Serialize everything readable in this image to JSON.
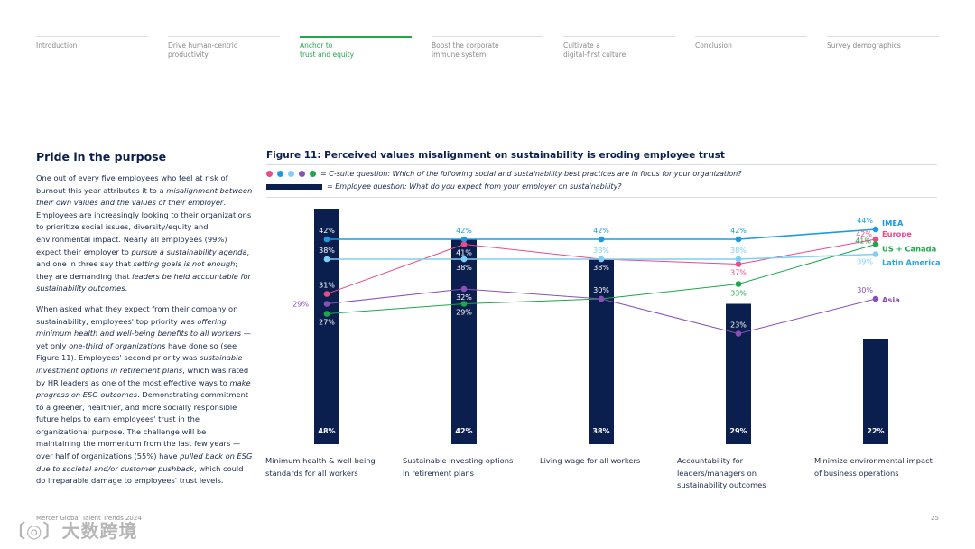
{
  "nav": [
    {
      "label": "Introduction",
      "active": false
    },
    {
      "label": "Drive human-centric\nproductivity",
      "active": false
    },
    {
      "label": "Anchor to\ntrust and equity",
      "active": true
    },
    {
      "label": "Boost the corporate\nimmune system",
      "active": false
    },
    {
      "label": "Cultivate a\ndigital-first culture",
      "active": false
    },
    {
      "label": "Conclusion",
      "active": false
    },
    {
      "label": "Survey demographics",
      "active": false
    }
  ],
  "section_title": "Pride in the purpose",
  "paragraphs": [
    [
      {
        "t": "One out of every five employees who feel at risk of burnout this year attributes it to a "
      },
      {
        "t": "misalignment between their own values and the values of their employer",
        "i": true
      },
      {
        "t": ". Employees are increasingly looking to their organizations to prioritize social issues, diversity/equity and environmental impact. Nearly all employees (99%) expect their employer to "
      },
      {
        "t": "pursue a sustainability agenda",
        "i": true
      },
      {
        "t": ", and one in three say that "
      },
      {
        "t": "setting goals is not enough",
        "i": true
      },
      {
        "t": "; they are demanding that "
      },
      {
        "t": "leaders be held accountable for sustainability outcomes",
        "i": true
      },
      {
        "t": "."
      }
    ],
    [
      {
        "t": "When asked what they expect from their company on sustainability, employees' top priority was "
      },
      {
        "t": "offering minimum health and well-being benefits to all workers",
        "i": true
      },
      {
        "t": " — yet only "
      },
      {
        "t": "one-third of organizations",
        "i": true
      },
      {
        "t": " have done so (see Figure 11). Employees' second priority was "
      },
      {
        "t": "sustainable investment options in retirement plans",
        "i": true
      },
      {
        "t": ", which was rated by HR leaders as one of the most effective ways to "
      },
      {
        "t": "make progress on ESG outcomes",
        "i": true
      },
      {
        "t": ". Demonstrating commitment to a greener, healthier, and more socially responsible future helps to earn employees' trust in the organizational purpose. The challenge will be maintaining the momentum from the last few years — over half of organizations (55%) have "
      },
      {
        "t": "pulled back on ESG due to societal and/or customer pushback",
        "i": true
      },
      {
        "t": ", which could do irreparable damage to employees' trust levels."
      }
    ]
  ],
  "chart_data": {
    "type": "bar",
    "title": "Figure 11: Perceived values misalignment on sustainability is eroding employee trust",
    "legend": {
      "csuite": "= C-suite question: Which of the following social and sustainability best practices are in focus for your organization?",
      "employee": "= Employee question: What do you expect from your employer on sustainability?"
    },
    "categories": [
      "Minimum health & well-being standards for all workers",
      "Sustainable investing options in retirement plans",
      "Living wage for all workers",
      "Accountability for leaders/managers on sustainability outcomes",
      "Minimize environmental impact of business operations"
    ],
    "bars": {
      "name": "Employee",
      "values": [
        48,
        42,
        38,
        29,
        22
      ],
      "color": "#0b1f4e"
    },
    "series": [
      {
        "name": "IMEA",
        "values": [
          42,
          42,
          42,
          42,
          44
        ],
        "color": "#1a9be0"
      },
      {
        "name": "Europe",
        "values": [
          31,
          41,
          38,
          37,
          42
        ],
        "color": "#e84a8a"
      },
      {
        "name": "US + Canada",
        "values": [
          27,
          29,
          30,
          33,
          41
        ],
        "color": "#1aa84a"
      },
      {
        "name": "Latin America",
        "values": [
          38,
          38,
          38,
          38,
          39
        ],
        "color": "#7fcff5"
      },
      {
        "name": "Asia",
        "values": [
          29,
          32,
          30,
          23,
          30
        ],
        "color": "#8a4fb5"
      }
    ],
    "ylim": [
      0,
      50
    ]
  },
  "footer": "Mercer Global Talent Trends 2024",
  "page_number": "25",
  "watermark": "大数跨境"
}
